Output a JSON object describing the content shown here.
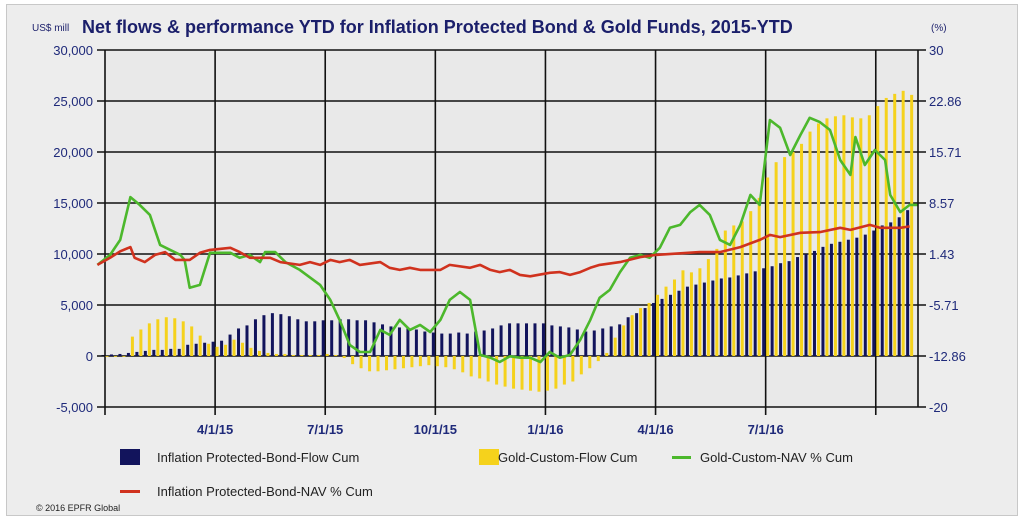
{
  "chart_data": {
    "type": "bar+line",
    "title": "Net flows & performance YTD for Inflation Protected Bond & Gold Funds, 2015-YTD",
    "ylabel_left": "US$ mill",
    "ylabel_right": "(%)",
    "ylim_left": [
      -5000,
      30000
    ],
    "ylim_right": [
      -20,
      30
    ],
    "yticks_left": [
      "30,000",
      "25,000",
      "20,000",
      "15,000",
      "10,000",
      "5,000",
      "0",
      "-5,000"
    ],
    "yticks_right": [
      "30",
      "22.86",
      "15.71",
      "8.57",
      "1.43",
      "-5.71",
      "-12.86",
      "-20"
    ],
    "x_unit": "weeks since 1/1/15",
    "xticks": [
      {
        "label": "4/1/15",
        "week": 13
      },
      {
        "label": "7/1/15",
        "week": 26
      },
      {
        "label": "10/1/15",
        "week": 39
      },
      {
        "label": "1/1/16",
        "week": 52
      },
      {
        "label": "4/1/16",
        "week": 65
      },
      {
        "label": "7/1/16",
        "week": 78
      },
      {
        "label": "",
        "week": 91
      }
    ],
    "grid": true,
    "legend_placement": "bottom",
    "bar_start_week": 0,
    "series": [
      {
        "name": "Inflation Protected-Bond-Flow Cum",
        "kind": "bar",
        "axis": "left",
        "color": "#12145c",
        "values": [
          100,
          150,
          200,
          300,
          400,
          500,
          600,
          600,
          700,
          700,
          1100,
          1200,
          1300,
          1400,
          1500,
          2100,
          2700,
          3000,
          3600,
          4000,
          4200,
          4100,
          3900,
          3600,
          3400,
          3400,
          3500,
          3500,
          3600,
          3600,
          3500,
          3500,
          3300,
          3100,
          2900,
          2800,
          2700,
          2600,
          2400,
          2300,
          2200,
          2200,
          2300,
          2200,
          2400,
          2500,
          2700,
          3000,
          3200,
          3200,
          3200,
          3200,
          3200,
          3000,
          2900,
          2800,
          2600,
          2400,
          2500,
          2700,
          2900,
          3100,
          3800,
          4200,
          4700,
          5200,
          5600,
          6000,
          6400,
          6800,
          7000,
          7200,
          7400,
          7600,
          7700,
          7900,
          8100,
          8300,
          8600,
          8800,
          9100,
          9300,
          9700,
          10000,
          10300,
          10700,
          11000,
          11200,
          11400,
          11600,
          11900,
          12300,
          12800,
          13100,
          13600,
          14300
        ]
      },
      {
        "name": "Gold-Custom-Flow Cum",
        "kind": "bar",
        "axis": "left",
        "color": "#f5d21c",
        "values": [
          0,
          0,
          0,
          1900,
          2600,
          3200,
          3600,
          3800,
          3700,
          3400,
          2900,
          2000,
          1200,
          900,
          1100,
          1600,
          1300,
          800,
          500,
          300,
          200,
          200,
          100,
          100,
          100,
          100,
          200,
          100,
          -200,
          -800,
          -1200,
          -1500,
          -1500,
          -1400,
          -1300,
          -1200,
          -1100,
          -1000,
          -900,
          -1000,
          -1100,
          -1300,
          -1600,
          -2000,
          -2200,
          -2500,
          -2800,
          -3000,
          -3200,
          -3300,
          -3400,
          -3500,
          -3400,
          -3200,
          -2800,
          -2500,
          -1800,
          -1200,
          -500,
          300,
          1800,
          3000,
          4000,
          4700,
          5200,
          6000,
          6800,
          7500,
          8400,
          8200,
          8600,
          9500,
          10500,
          12300,
          12800,
          13200,
          14200,
          15500,
          17500,
          19000,
          19500,
          20000,
          20800,
          22000,
          22800,
          23300,
          23500,
          23600,
          23400,
          23300,
          23600,
          24500,
          25300,
          25700,
          26000,
          25600
        ]
      },
      {
        "name": "Gold-Custom-NAV % Cum",
        "kind": "line",
        "axis": "right",
        "color": "#4cb82c",
        "points": [
          [
            -0.9,
            -0.1
          ],
          [
            0.6,
            1.3
          ],
          [
            1.8,
            3.4
          ],
          [
            3.0,
            9.4
          ],
          [
            4.1,
            8.3
          ],
          [
            5.3,
            6.9
          ],
          [
            6.5,
            2.7
          ],
          [
            7.7,
            2.0
          ],
          [
            8.9,
            1.3
          ],
          [
            9.4,
            0.6
          ],
          [
            10.0,
            -3.3
          ],
          [
            11.2,
            -2.9
          ],
          [
            12.4,
            1.6
          ],
          [
            14.8,
            1.6
          ],
          [
            15.9,
            0.9
          ],
          [
            17.1,
            1.3
          ],
          [
            18.3,
            0.3
          ],
          [
            18.9,
            1.7
          ],
          [
            20.1,
            1.7
          ],
          [
            21.3,
            0.3
          ],
          [
            23.0,
            -0.8
          ],
          [
            25.4,
            -2.9
          ],
          [
            26.6,
            -5.0
          ],
          [
            27.7,
            -7.8
          ],
          [
            28.9,
            -11.3
          ],
          [
            30.1,
            -12.3
          ],
          [
            31.3,
            -12.3
          ],
          [
            32.5,
            -9.2
          ],
          [
            33.6,
            -9.9
          ],
          [
            34.8,
            -7.8
          ],
          [
            36.0,
            -9.2
          ],
          [
            37.2,
            -8.5
          ],
          [
            38.4,
            -9.5
          ],
          [
            39.6,
            -7.8
          ],
          [
            40.7,
            -5.0
          ],
          [
            41.9,
            -3.9
          ],
          [
            43.1,
            -5.0
          ],
          [
            44.3,
            -12.7
          ],
          [
            45.5,
            -13.1
          ],
          [
            46.6,
            -13.7
          ],
          [
            47.8,
            -12.9
          ],
          [
            49.0,
            -13.1
          ],
          [
            50.2,
            -13.1
          ],
          [
            51.4,
            -13.7
          ],
          [
            52.5,
            -12.3
          ],
          [
            53.7,
            -13.1
          ],
          [
            54.9,
            -12.7
          ],
          [
            56.1,
            -10.6
          ],
          [
            57.3,
            -7.8
          ],
          [
            58.4,
            -4.7
          ],
          [
            59.6,
            -3.6
          ],
          [
            60.8,
            -1.1
          ],
          [
            62.0,
            0.9
          ],
          [
            63.2,
            1.3
          ],
          [
            64.3,
            0.9
          ],
          [
            65.5,
            2.3
          ],
          [
            66.7,
            5.1
          ],
          [
            67.9,
            5.5
          ],
          [
            69.1,
            7.3
          ],
          [
            70.2,
            8.3
          ],
          [
            71.4,
            6.9
          ],
          [
            72.6,
            3.4
          ],
          [
            73.8,
            2.7
          ],
          [
            75.0,
            5.5
          ],
          [
            76.2,
            9.7
          ],
          [
            77.3,
            8.3
          ],
          [
            78.5,
            20.2
          ],
          [
            79.7,
            19.1
          ],
          [
            80.9,
            15.3
          ],
          [
            82.1,
            18.1
          ],
          [
            83.2,
            20.5
          ],
          [
            84.4,
            19.9
          ],
          [
            85.6,
            18.8
          ],
          [
            86.8,
            14.6
          ],
          [
            88.0,
            12.5
          ],
          [
            88.6,
            17.8
          ],
          [
            89.7,
            13.9
          ],
          [
            90.9,
            16.0
          ],
          [
            92.1,
            14.6
          ],
          [
            92.7,
            9.7
          ],
          [
            93.9,
            7.3
          ],
          [
            95.0,
            8.3
          ],
          [
            96.0,
            8.3
          ]
        ]
      },
      {
        "name": "Inflation Protected-Bond-NAV % Cum",
        "kind": "line",
        "axis": "right",
        "color": "#d0321e",
        "points": [
          [
            -0.9,
            -0.1
          ],
          [
            0.6,
            0.9
          ],
          [
            1.8,
            1.8
          ],
          [
            3.0,
            2.4
          ],
          [
            3.5,
            0.9
          ],
          [
            4.7,
            0.3
          ],
          [
            5.9,
            1.3
          ],
          [
            7.1,
            1.7
          ],
          [
            8.3,
            0.6
          ],
          [
            10.0,
            0.6
          ],
          [
            11.2,
            1.6
          ],
          [
            12.4,
            2.0
          ],
          [
            14.8,
            2.3
          ],
          [
            15.9,
            1.7
          ],
          [
            17.1,
            0.9
          ],
          [
            19.5,
            0.9
          ],
          [
            20.7,
            0.3
          ],
          [
            23.0,
            -0.1
          ],
          [
            24.2,
            0.3
          ],
          [
            25.4,
            -0.1
          ],
          [
            26.6,
            0.6
          ],
          [
            27.7,
            0.3
          ],
          [
            28.9,
            0.6
          ],
          [
            30.1,
            -0.1
          ],
          [
            32.5,
            0.3
          ],
          [
            33.6,
            -0.5
          ],
          [
            34.8,
            -0.8
          ],
          [
            36.0,
            -0.5
          ],
          [
            37.2,
            -0.8
          ],
          [
            39.6,
            -0.8
          ],
          [
            40.7,
            -0.1
          ],
          [
            43.1,
            -0.5
          ],
          [
            44.3,
            -0.1
          ],
          [
            45.5,
            -0.8
          ],
          [
            46.6,
            -1.1
          ],
          [
            47.8,
            -0.8
          ],
          [
            49.0,
            -1.5
          ],
          [
            50.2,
            -1.7
          ],
          [
            52.5,
            -1.2
          ],
          [
            53.7,
            -1.1
          ],
          [
            54.9,
            -1.5
          ],
          [
            56.1,
            -1.1
          ],
          [
            57.3,
            -0.5
          ],
          [
            58.4,
            -0.1
          ],
          [
            60.8,
            0.3
          ],
          [
            63.2,
            1.0
          ],
          [
            65.0,
            1.3
          ],
          [
            70.2,
            1.7
          ],
          [
            72.6,
            1.7
          ],
          [
            75.0,
            2.4
          ],
          [
            77.3,
            3.4
          ],
          [
            78.5,
            4.1
          ],
          [
            79.7,
            3.8
          ],
          [
            82.1,
            4.4
          ],
          [
            84.4,
            4.5
          ],
          [
            86.8,
            5.1
          ],
          [
            88.0,
            4.8
          ],
          [
            90.3,
            5.5
          ],
          [
            91.5,
            5.1
          ],
          [
            93.9,
            5.1
          ],
          [
            95.0,
            5.3
          ]
        ]
      }
    ]
  },
  "legend": {
    "ipb_flow": "Inflation Protected-Bond-Flow Cum",
    "gold_flow": "Gold-Custom-Flow Cum",
    "gold_nav": "Gold-Custom-NAV % Cum",
    "ipb_nav": "Inflation Protected-Bond-NAV % Cum"
  },
  "copyright": "© 2016 EPFR Global"
}
